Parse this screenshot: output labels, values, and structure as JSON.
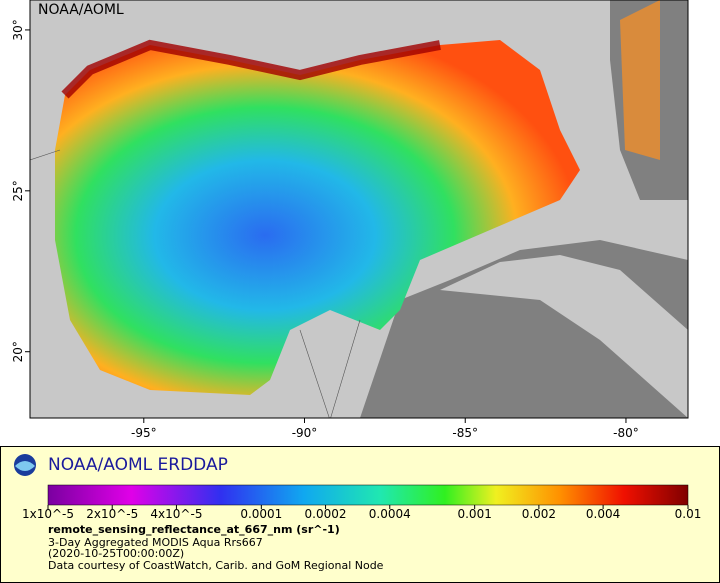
{
  "map": {
    "credit": "NOAA/AOML",
    "xlim": [
      -98.54,
      -78.07
    ],
    "ylim": [
      17.94,
      30.93
    ],
    "xticks": [
      {
        "value": -95,
        "label": "-95°"
      },
      {
        "value": -90,
        "label": "-90°"
      },
      {
        "value": -85,
        "label": "-85°"
      },
      {
        "value": -80,
        "label": "-80°"
      }
    ],
    "yticks": [
      {
        "value": 20,
        "label": "20°"
      },
      {
        "value": 25,
        "label": "25°"
      },
      {
        "value": 30,
        "label": "30°"
      }
    ]
  },
  "legend": {
    "title": "NOAA/AOML ERDDAP",
    "colorbar": {
      "log": true,
      "lim": [
        1e-05,
        0.01
      ],
      "ticks": [
        {
          "value": 1e-05,
          "label": "1x10^-5"
        },
        {
          "value": 2e-05,
          "label": "2x10^-5"
        },
        {
          "value": 4e-05,
          "label": "4x10^-5"
        },
        {
          "value": 0.0001,
          "label": "0.0001"
        },
        {
          "value": 0.0002,
          "label": "0.0002"
        },
        {
          "value": 0.0004,
          "label": "0.0004"
        },
        {
          "value": 0.001,
          "label": "0.001"
        },
        {
          "value": 0.002,
          "label": "0.002"
        },
        {
          "value": 0.004,
          "label": "0.004"
        },
        {
          "value": 0.01,
          "label": "0.01"
        }
      ]
    },
    "variable": "remote_sensing_reflectance_at_667_nm (sr^-1)",
    "dataset": "3-Day Aggregated MODIS Aqua Rrs667",
    "time": "(2020-10-25T00:00:00Z)",
    "courtesy": "Data courtesy of CoastWatch, Carib. and GoM Regional Node"
  }
}
